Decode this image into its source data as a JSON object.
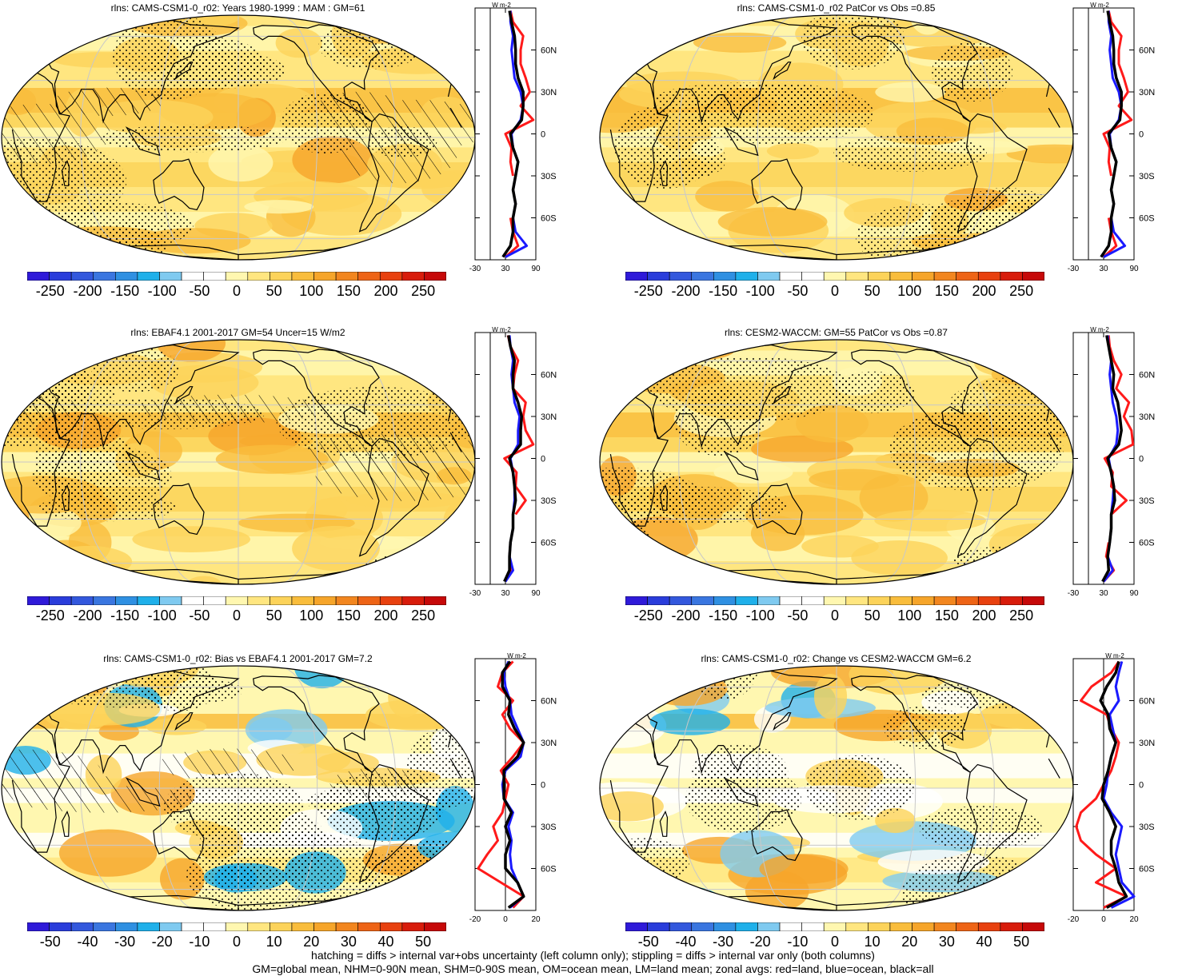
{
  "footer": {
    "line1": "hatching = diffs > internal var+obs uncertainty (left column only); stippling = diffs > internal var only (both columns)",
    "line2": "GM=global mean, NHM=0-90N mean, SHM=0-90S mean, OM=ocean mean, LM=land mean; zonal avgs: red=land, blue=ocean, black=all"
  },
  "colors": {
    "scale": [
      "#2f1ad9",
      "#2a3ddb",
      "#3358dd",
      "#3a76e0",
      "#2f90e2",
      "#1fb0ea",
      "#7fcaf0",
      "#ffffff",
      "#ffffff",
      "#fff7b0",
      "#ffe680",
      "#fcd35a",
      "#f9bd3c",
      "#f6a52a",
      "#f2861f",
      "#ee6416",
      "#e8410f",
      "#d81c0b",
      "#c60909"
    ],
    "land_zonal": "#ff1a1a",
    "ocean_zonal": "#1a1aff",
    "all_zonal": "#000000"
  },
  "panels": [
    {
      "title": "rlns: CAMS-CSM1-0_r02: Years 1980-1999 : MAM : GM=61",
      "colorbar_labels": [
        "-250",
        "-200",
        "-150",
        "-100",
        "-50",
        "0",
        "50",
        "100",
        "150",
        "200",
        "250"
      ],
      "zonal_xticks": [
        "-30",
        "30",
        "90"
      ],
      "zonal_unit": "W m-2",
      "zonal_yticks": [
        "60N",
        "30N",
        "0",
        "30S",
        "60S"
      ],
      "pattern": "mean"
    },
    {
      "title": "rlns: CAMS-CSM1-0_r02 PatCor vs Obs =0.85",
      "colorbar_labels": [
        "-250",
        "-200",
        "-150",
        "-100",
        "-50",
        "0",
        "50",
        "100",
        "150",
        "200",
        "250"
      ],
      "zonal_xticks": [
        "-30",
        "30",
        "90"
      ],
      "zonal_unit": "W m-2",
      "zonal_yticks": [
        "60N",
        "30N",
        "0",
        "30S",
        "60S"
      ],
      "pattern": "mean"
    },
    {
      "title": "rlns: EBAF4.1 2001-2017 GM=54 Uncer=15 W/m2",
      "colorbar_labels": [
        "-250",
        "-200",
        "-150",
        "-100",
        "-50",
        "0",
        "50",
        "100",
        "150",
        "200",
        "250"
      ],
      "zonal_xticks": [
        "-30",
        "30",
        "90"
      ],
      "zonal_unit": "W m-2",
      "zonal_yticks": [
        "60N",
        "30N",
        "0",
        "30S",
        "60S"
      ],
      "pattern": "mean"
    },
    {
      "title": "rlns: CESM2-WACCM: GM=55 PatCor vs Obs =0.87",
      "colorbar_labels": [
        "-250",
        "-200",
        "-150",
        "-100",
        "-50",
        "0",
        "50",
        "100",
        "150",
        "200",
        "250"
      ],
      "zonal_xticks": [
        "-30",
        "30",
        "90"
      ],
      "zonal_unit": "W m-2",
      "zonal_yticks": [
        "60N",
        "30N",
        "0",
        "30S",
        "60S"
      ],
      "pattern": "mean"
    },
    {
      "title": "rlns: CAMS-CSM1-0_r02: Bias vs EBAF4.1 2001-2017 GM=7.2",
      "colorbar_labels": [
        "-50",
        "-40",
        "-30",
        "-20",
        "-10",
        "0",
        "10",
        "20",
        "30",
        "40",
        "50"
      ],
      "zonal_xticks": [
        "-20",
        "0",
        "20"
      ],
      "zonal_unit": "W m-2",
      "zonal_yticks": [
        "60N",
        "30N",
        "0",
        "30S",
        "60S"
      ],
      "pattern": "diff"
    },
    {
      "title": "rlns: CAMS-CSM1-0_r02: Change vs CESM2-WACCM GM=6.2",
      "colorbar_labels": [
        "-50",
        "-40",
        "-30",
        "-20",
        "-10",
        "0",
        "10",
        "20",
        "30",
        "40",
        "50"
      ],
      "zonal_xticks": [
        "-20",
        "0",
        "20"
      ],
      "zonal_unit": "W m-2",
      "zonal_yticks": [
        "60N",
        "30N",
        "0",
        "30S",
        "60S"
      ],
      "pattern": "diff"
    }
  ],
  "chart_data": [
    {
      "type": "heatmap",
      "title": "rlns: CAMS-CSM1-0_r02: Years 1980-1999 : MAM : GM=61",
      "colorbar_range": [
        -250,
        250
      ],
      "zonal": {
        "type": "line",
        "xlim": [
          -30,
          90
        ],
        "ylim": [
          -90,
          90
        ],
        "lat": [
          -88,
          -80,
          -70,
          -60,
          -50,
          -40,
          -30,
          -20,
          -10,
          0,
          10,
          20,
          30,
          40,
          50,
          60,
          70,
          80,
          88
        ],
        "series": [
          {
            "name": "land",
            "x": [
              30,
              55,
              45,
              40,
              null,
              null,
              45,
              40,
              42,
              30,
              85,
              60,
              78,
              70,
              60,
              60,
              65,
              45,
              40
            ]
          },
          {
            "name": "ocean",
            "x": [
              30,
              72,
              50,
              45,
              50,
              45,
              50,
              55,
              45,
              42,
              60,
              65,
              60,
              48,
              45,
              42,
              45,
              40,
              40
            ]
          },
          {
            "name": "all",
            "x": [
              25,
              40,
              45,
              45,
              50,
              45,
              50,
              55,
              45,
              40,
              62,
              65,
              65,
              55,
              50,
              50,
              48,
              42,
              38
            ]
          }
        ]
      }
    },
    {
      "type": "heatmap",
      "title": "rlns: CAMS-CSM1-0_r02 PatCor vs Obs =0.85",
      "colorbar_range": [
        -250,
        250
      ],
      "zonal": {
        "type": "line",
        "xlim": [
          -30,
          90
        ],
        "ylim": [
          -90,
          90
        ],
        "lat": [
          -88,
          -80,
          -70,
          -60,
          -50,
          -40,
          -30,
          -20,
          -10,
          0,
          10,
          20,
          30,
          40,
          50,
          60,
          70,
          80,
          88
        ],
        "series": [
          {
            "name": "land",
            "x": [
              30,
              55,
              45,
              40,
              null,
              null,
              45,
              40,
              42,
              30,
              85,
              60,
              78,
              70,
              60,
              60,
              65,
              45,
              40
            ]
          },
          {
            "name": "ocean",
            "x": [
              30,
              72,
              50,
              45,
              50,
              45,
              50,
              55,
              45,
              42,
              60,
              65,
              60,
              48,
              45,
              42,
              45,
              40,
              40
            ]
          },
          {
            "name": "all",
            "x": [
              25,
              40,
              45,
              45,
              50,
              45,
              50,
              55,
              45,
              40,
              62,
              65,
              65,
              55,
              50,
              50,
              48,
              42,
              38
            ]
          }
        ]
      }
    },
    {
      "type": "heatmap",
      "title": "rlns: EBAF4.1 2001-2017 GM=54 Uncer=15 W/m2",
      "colorbar_range": [
        -250,
        250
      ],
      "zonal": {
        "type": "line",
        "xlim": [
          -30,
          90
        ],
        "ylim": [
          -90,
          90
        ],
        "lat": [
          -88,
          -80,
          -70,
          -60,
          -50,
          -40,
          -30,
          -20,
          -10,
          0,
          10,
          20,
          30,
          40,
          50,
          60,
          70,
          80,
          88
        ],
        "series": [
          {
            "name": "land",
            "x": [
              30,
              40,
              38,
              40,
              null,
              50,
              70,
              50,
              52,
              28,
              85,
              70,
              65,
              70,
              45,
              48,
              55,
              40,
              35
            ]
          },
          {
            "name": "ocean",
            "x": [
              30,
              45,
              38,
              40,
              45,
              45,
              48,
              48,
              45,
              40,
              55,
              55,
              58,
              48,
              45,
              42,
              45,
              40,
              38
            ]
          },
          {
            "name": "all",
            "x": [
              28,
              38,
              38,
              40,
              45,
              45,
              50,
              48,
              45,
              38,
              60,
              60,
              62,
              55,
              45,
              45,
              48,
              40,
              36
            ]
          }
        ]
      }
    },
    {
      "type": "heatmap",
      "title": "rlns: CESM2-WACCM: GM=55 PatCor vs Obs =0.87",
      "colorbar_range": [
        -250,
        250
      ],
      "zonal": {
        "type": "line",
        "xlim": [
          -30,
          90
        ],
        "ylim": [
          -90,
          90
        ],
        "lat": [
          -88,
          -80,
          -70,
          -60,
          -50,
          -40,
          -30,
          -20,
          -10,
          0,
          10,
          20,
          30,
          40,
          50,
          60,
          70,
          80,
          88
        ],
        "series": [
          {
            "name": "land",
            "x": [
              30,
              50,
              35,
              40,
              null,
              45,
              75,
              45,
              48,
              32,
              88,
              85,
              70,
              80,
              55,
              65,
              50,
              42,
              40
            ]
          },
          {
            "name": "ocean",
            "x": [
              30,
              48,
              38,
              42,
              45,
              45,
              48,
              50,
              45,
              40,
              55,
              58,
              55,
              48,
              45,
              42,
              45,
              40,
              38
            ]
          },
          {
            "name": "all",
            "x": [
              28,
              40,
              38,
              42,
              45,
              45,
              52,
              50,
              45,
              38,
              60,
              65,
              62,
              58,
              48,
              50,
              45,
              40,
              36
            ]
          }
        ]
      }
    },
    {
      "type": "heatmap",
      "title": "rlns: CAMS-CSM1-0_r02: Bias vs EBAF4.1 2001-2017 GM=7.2",
      "colorbar_range": [
        -50,
        50
      ],
      "zonal": {
        "type": "line",
        "xlim": [
          -20,
          20
        ],
        "ylim": [
          -90,
          90
        ],
        "lat": [
          -88,
          -80,
          -70,
          -60,
          -50,
          -40,
          -30,
          -20,
          -10,
          0,
          10,
          20,
          30,
          40,
          50,
          60,
          70,
          80,
          88
        ],
        "series": [
          {
            "name": "land",
            "x": [
              5,
              12,
              -3,
              -18,
              -12,
              -5,
              -8,
              -2,
              0,
              2,
              -3,
              5,
              12,
              3,
              -2,
              5,
              -5,
              -2,
              5
            ]
          },
          {
            "name": "ocean",
            "x": [
              3,
              12,
              8,
              4,
              3,
              4,
              2,
              5,
              -1,
              -2,
              0,
              10,
              12,
              8,
              4,
              3,
              0,
              -1,
              2
            ]
          },
          {
            "name": "all",
            "x": [
              2,
              12,
              8,
              0,
              0,
              3,
              0,
              4,
              -1,
              -1,
              -1,
              8,
              12,
              6,
              2,
              3,
              -2,
              -2,
              3
            ]
          }
        ]
      }
    },
    {
      "type": "heatmap",
      "title": "rlns: CAMS-CSM1-0_r02: Change vs CESM2-WACCM GM=6.2",
      "colorbar_range": [
        -50,
        50
      ],
      "zonal": {
        "type": "line",
        "xlim": [
          -20,
          20
        ],
        "ylim": [
          -90,
          90
        ],
        "lat": [
          -88,
          -80,
          -70,
          -60,
          -50,
          -40,
          -30,
          -20,
          -10,
          0,
          10,
          20,
          30,
          40,
          50,
          60,
          70,
          80,
          88
        ],
        "series": [
          {
            "name": "land",
            "x": [
              0,
              15,
              -5,
              8,
              -5,
              -15,
              -18,
              -15,
              -5,
              0,
              5,
              8,
              10,
              5,
              2,
              -15,
              -8,
              5,
              10
            ]
          },
          {
            "name": "ocean",
            "x": [
              5,
              20,
              12,
              10,
              8,
              10,
              12,
              5,
              0,
              2,
              3,
              5,
              8,
              6,
              4,
              10,
              8,
              10,
              12
            ]
          },
          {
            "name": "all",
            "x": [
              2,
              15,
              10,
              8,
              5,
              5,
              8,
              4,
              -1,
              0,
              3,
              5,
              8,
              4,
              3,
              -2,
              2,
              8,
              10
            ]
          }
        ]
      }
    }
  ]
}
